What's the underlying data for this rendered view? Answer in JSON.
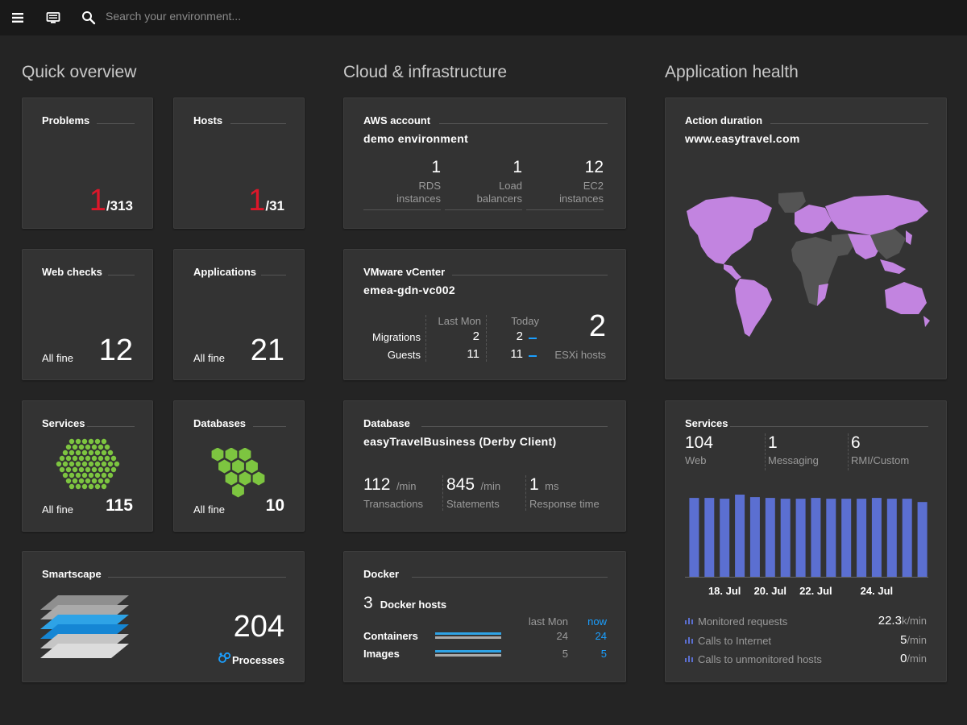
{
  "topbar": {
    "menu_icon": "hamburger-icon",
    "screen_icon": "monitor-icon",
    "search_icon": "search-icon",
    "search_placeholder": "Search your environment..."
  },
  "columns": {
    "quick": "Quick overview",
    "cloud": "Cloud & infrastructure",
    "apphealth": "Application health"
  },
  "problems": {
    "title": "Problems",
    "count": "1",
    "total": "/313"
  },
  "hosts": {
    "title": "Hosts",
    "count": "1",
    "total": "/31"
  },
  "webchecks": {
    "title": "Web checks",
    "status": "All fine",
    "count": "12"
  },
  "applications": {
    "title": "Applications",
    "status": "All fine",
    "count": "21"
  },
  "services_tile": {
    "title": "Services",
    "status": "All fine",
    "count": "115"
  },
  "databases_tile": {
    "title": "Databases",
    "status": "All fine",
    "count": "10"
  },
  "smartscape": {
    "title": "Smartscape",
    "count": "204",
    "label": "Processes"
  },
  "aws": {
    "title": "AWS account",
    "name": "demo environment",
    "metrics": [
      {
        "value": "1",
        "label1": "RDS",
        "label2": "instances"
      },
      {
        "value": "1",
        "label1": "Load",
        "label2": "balancers"
      },
      {
        "value": "12",
        "label1": "EC2",
        "label2": "instances"
      }
    ]
  },
  "vmware": {
    "title": "VMware vCenter",
    "name": "emea-gdn-vc002",
    "col1": "Last Mon",
    "col2": "Today",
    "rows": [
      {
        "label": "Migrations",
        "last": "2",
        "today": "2"
      },
      {
        "label": "Guests",
        "last": "11",
        "today": "11"
      }
    ],
    "esxi_count": "2",
    "esxi_label": "ESXi hosts"
  },
  "database": {
    "title": "Database",
    "name": "easyTravelBusiness (Derby Client)",
    "metrics": [
      {
        "value": "112",
        "unit": "/min",
        "label": "Transactions"
      },
      {
        "value": "845",
        "unit": "/min",
        "label": "Statements"
      },
      {
        "value": "1",
        "unit": "ms",
        "label": "Response time"
      }
    ]
  },
  "docker": {
    "title": "Docker",
    "hosts_count": "3",
    "hosts_label": "Docker hosts",
    "col1": "last Mon",
    "col2": "now",
    "rows": [
      {
        "label": "Containers",
        "last": "24",
        "now": "24"
      },
      {
        "label": "Images",
        "last": "5",
        "now": "5"
      }
    ]
  },
  "action_duration": {
    "title": "Action duration",
    "site": "www.easytravel.com"
  },
  "services_health": {
    "title": "Services",
    "metrics": [
      {
        "value": "104",
        "label": "Web"
      },
      {
        "value": "1",
        "label": "Messaging"
      },
      {
        "value": "6",
        "label": "RMI/Custom"
      }
    ],
    "rows": [
      {
        "label": "Monitored requests",
        "value": "22.3",
        "unit": "k/min"
      },
      {
        "label": "Calls to Internet",
        "value": "5",
        "unit": "/min"
      },
      {
        "label": "Calls to unmonitored hosts",
        "value": "0",
        "unit": "/min"
      }
    ]
  },
  "chart_data": {
    "type": "bar",
    "categories": [
      "",
      "",
      "18. Jul",
      "",
      "",
      "20. Jul",
      "",
      "",
      "22. Jul",
      "",
      "",
      "",
      "24. Jul",
      "",
      "",
      ""
    ],
    "tick_labels": [
      "18. Jul",
      "20. Jul",
      "22. Jul",
      "24. Jul"
    ],
    "values": [
      96,
      96,
      95,
      100,
      97,
      96,
      95,
      95,
      96,
      95,
      95,
      95,
      96,
      95,
      95,
      91
    ],
    "color": "#5b6fd1",
    "ylim": [
      0,
      100
    ]
  },
  "colors": {
    "map_land": "#c284e0",
    "map_other": "#545454",
    "hex_services": "#7dc540",
    "hex_db": "#7dc540",
    "accent_blue": "#1a9fff",
    "problem_red": "#dc172a"
  }
}
